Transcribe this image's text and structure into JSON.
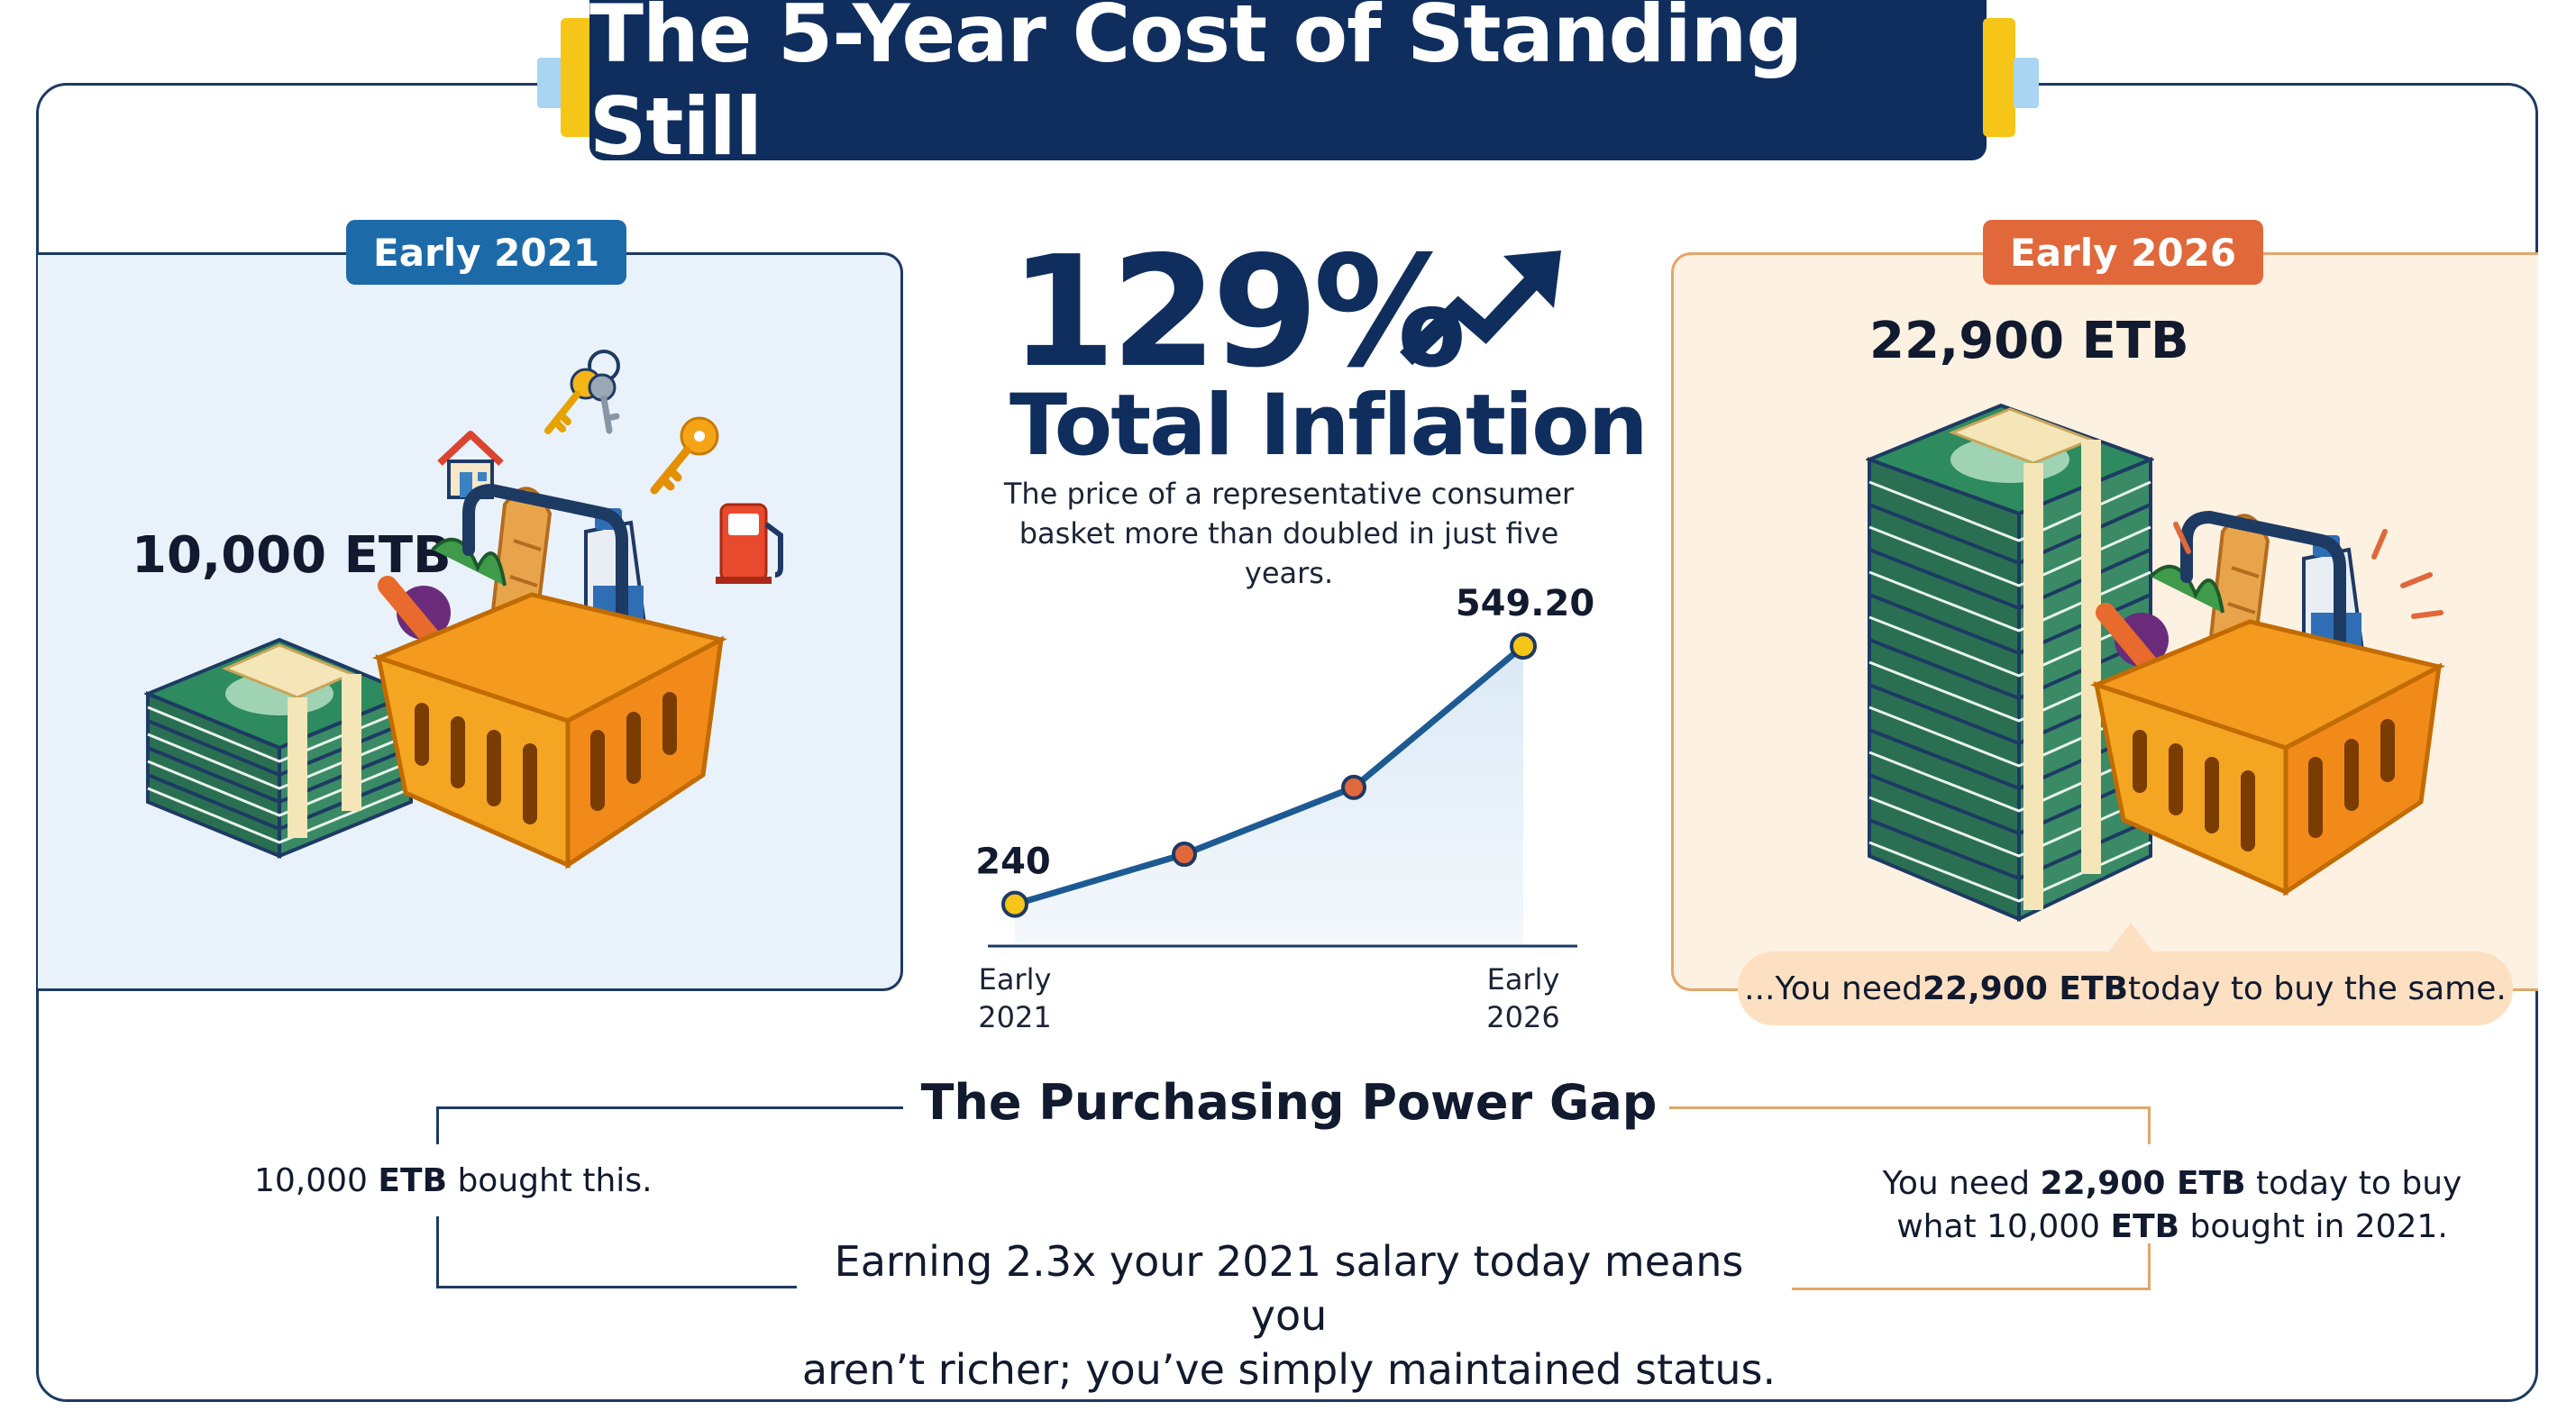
{
  "title": "The 5-Year Cost of Standing Still",
  "left_panel": {
    "badge": "Early 2021",
    "amount": "10,000 ETB"
  },
  "right_panel": {
    "badge": "Early 2026",
    "amount": "22,900 ETB",
    "callout_prefix": "...You need ",
    "callout_bold": "22,900 ETB",
    "callout_suffix": " today to buy the same."
  },
  "center": {
    "percent": "129%",
    "headline": "Total Inflation",
    "description_line1": "The price of a representative consumer",
    "description_line2": "basket more than doubled in just five years."
  },
  "chart_data": {
    "type": "line",
    "x": [
      "Early 2021",
      "",
      "",
      "Early 2026"
    ],
    "values": [
      240,
      300,
      380,
      549.2
    ],
    "data_labels": [
      "240",
      "",
      "",
      "549.20"
    ],
    "x_tick_labels": [
      [
        "Early",
        "2021"
      ],
      [
        "Early",
        "2026"
      ]
    ],
    "ylim": [
      190,
      600
    ],
    "grid": false,
    "colors": {
      "line": "#1d5a93",
      "marker": "#f5c518",
      "mid_marker": "#e0683a",
      "area": "#dbe9f5"
    }
  },
  "gap": {
    "title": "The Purchasing Power Gap",
    "left_prefix": "10,000 ",
    "left_bold": "ETB",
    "left_suffix": " bought this.",
    "right_line1_prefix": "You need ",
    "right_line1_bold": "22,900 ETB",
    "right_line1_suffix": " today to buy",
    "right_line2_prefix": "what 10,000 ",
    "right_line2_bold": "ETB",
    "right_line2_suffix": " bought in 2021.",
    "bottom_line1": "Earning 2.3x your 2021 salary today means you",
    "bottom_line2": "aren’t richer; you’ve simply maintained status."
  },
  "icons": [
    "house-icon",
    "keys-icon",
    "key-icon",
    "fuel-pump-icon",
    "cash-stack-icon",
    "grocery-basket-icon",
    "trend-arrow-icon"
  ],
  "colors": {
    "navy": "#0f2e5e",
    "blue_badge": "#1d6aa8",
    "orange_badge": "#e0683a",
    "left_bg": "#e9f2fb",
    "right_bg": "#fdf1e2",
    "callout_bg": "#fde0c2"
  }
}
